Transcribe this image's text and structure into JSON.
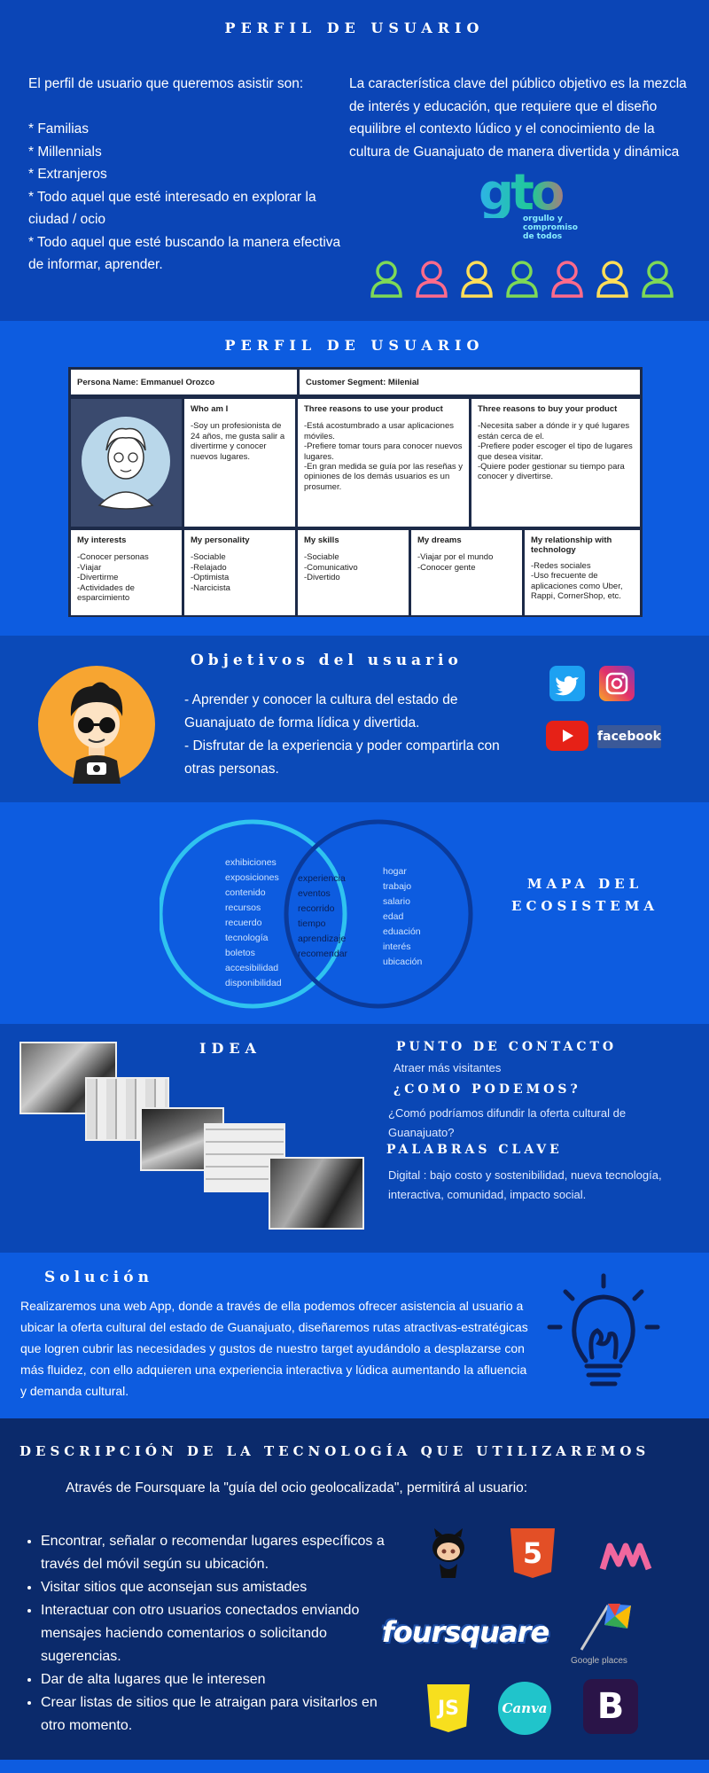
{
  "section1": {
    "title": "PERFIL DE USUARIO",
    "left_text": "El perfil de usuario que queremos asistir son:\n\n* Familias\n* Millennials\n* Extranjeros\n* Todo aquel que esté interesado en explorar la ciudad / ocio\n* Todo aquel que esté buscando la manera efectiva de informar, aprender.",
    "right_text": "La característica clave del público objetivo es la mezcla de interés y educación, que requiere que el diseño equilibre el contexto lúdico y el conocimiento de la cultura de Guanajuato de manera divertida y dinámica",
    "logo_text": "gto",
    "logo_tagline": "orgullo y\ncompromiso\nde todos",
    "user_icon_colors": [
      "#7ed957",
      "#ff6b8b",
      "#ffde59",
      "#7ed957",
      "#ff6b8b",
      "#ffde59",
      "#7ed957"
    ]
  },
  "section2": {
    "title": "PERFIL DE USUARIO",
    "persona_name": "Persona Name: Emmanuel Orozco",
    "customer_segment": "Customer Segment: Milenial",
    "who_am_i": {
      "title": "Who am I",
      "text": "-Soy un profesionista de 24 años, me gusta salir a divertirme y conocer nuevos lugares."
    },
    "reasons_use": {
      "title": "Three reasons to use your product",
      "text": "-Está acostumbrado a usar aplicaciones móviles.\n-Prefiere tomar tours para conocer nuevos lugares.\n-En gran medida se guía por las reseñas y opiniones de los demás usuarios es un prosumer."
    },
    "reasons_buy": {
      "title": "Three reasons to buy your product",
      "text": "-Necesita saber a dónde ir y qué lugares están cerca de el.\n-Prefiere poder escoger el tipo de lugares que desea visitar.\n-Quiere poder gestionar su tiempo para conocer y divertirse."
    },
    "interests": {
      "title": "My interests",
      "text": "-Conocer personas\n-Viajar\n-Divertirme\n-Actividades de esparcimiento"
    },
    "personality": {
      "title": "My personality",
      "text": "-Sociable\n-Relajado\n-Optimista\n-Narcicista"
    },
    "skills": {
      "title": "My skills",
      "text": "-Sociable\n-Comunicativo\n-Divertido"
    },
    "dreams": {
      "title": "My dreams",
      "text": "-Viajar por el mundo\n-Conocer gente"
    },
    "technology": {
      "title": "My relationship with technology",
      "text": "-Redes sociales\n-Uso frecuente de aplicaciones como Uber, Rappi, CornerShop, etc."
    }
  },
  "section3": {
    "title": "Objetivos del usuario",
    "text": "- Aprender y conocer la cultura del estado de Guanajuato de forma lídica y divertida.\n- Disfrutar de la experiencia y poder compartirla con otras personas.",
    "facebook_label": "facebook"
  },
  "section4": {
    "title": "MAPA DEL ECOSISTEMA",
    "left_items": [
      "exhibiciones",
      "exposiciones",
      "contenido",
      "recursos",
      "recuerdo",
      "tecnología",
      "boletos",
      "accesibilidad",
      "disponibilidad"
    ],
    "center_items": [
      "experiencia",
      "eventos",
      "recorrido",
      "tiempo",
      "aprendizaje",
      "recomendar"
    ],
    "right_items": [
      "hogar",
      "trabajo",
      "salario",
      "edad",
      "eduación",
      "interés",
      "ubicación"
    ]
  },
  "section5": {
    "idea_title": "IDEA",
    "contact_title": "PUNTO DE CONTACTO",
    "contact_text": "Atraer más visitantes",
    "question_title": "¿COMO PODEMOS?",
    "question_text": "¿Comó podríamos difundir la oferta cultural de Guanajuato?",
    "keywords_title": "PALABRAS CLAVE",
    "keywords_text": "Digital : bajo costo y sostenibilidad, nueva tecnología, interactiva, comunidad, impacto social."
  },
  "section6": {
    "title": "Solución",
    "text": "Realizaremos una web App, donde a través de ella podemos ofrecer asistencia al usuario a ubicar la oferta cultural del estado de Guanajuato, diseñaremos rutas atractivas-estratégicas que logren cubrir las necesidades y gustos de nuestro target ayudándolo a desplazarse con más fluidez, con ello adquieren una experiencia interactiva y lúdica aumentando la afluencia y demanda cultural."
  },
  "section7": {
    "title": "DESCRIPCIÓN DE LA TECNOLOGÍA QUE UTILIZAREMOS",
    "intro": "Através de Foursquare la \"guía del ocio geolocalizada\", permitirá al usuario:",
    "bullets": [
      " Encontrar, señalar o recomendar lugares específicos a través del móvil según su ubicación.",
      " Visitar sitios que aconsejan sus amistades",
      "Interactuar con otro usuarios conectados enviando mensajes haciendo comentarios o solicitando sugerencias.",
      "Dar de alta lugares que le interesen",
      "Crear listas de sitios que le atraigan para visitarlos en otro momento."
    ],
    "logos": {
      "html5": "5",
      "foursquare": "foursquare",
      "google_places": "Google places",
      "js": "JS",
      "canva": "Canva",
      "bootstrap": "B"
    }
  }
}
